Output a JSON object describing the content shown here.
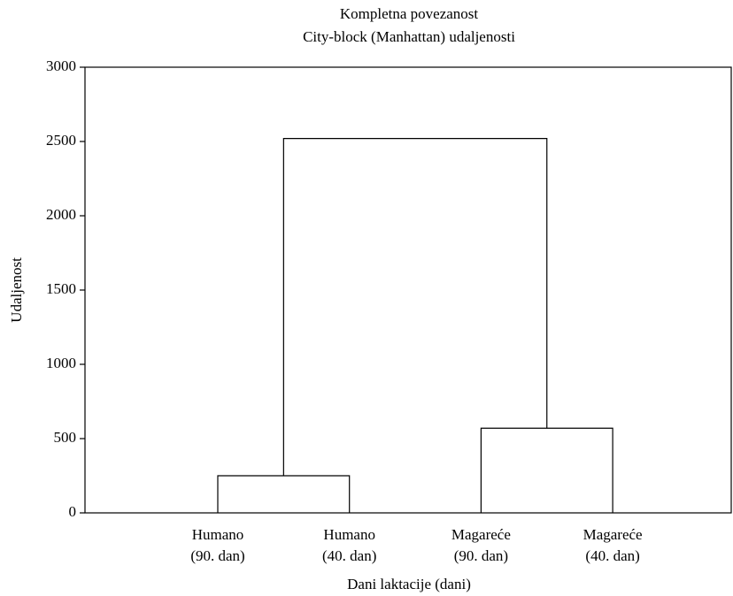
{
  "chart_data": {
    "type": "dendrogram",
    "title": "Kompletna povezanost",
    "subtitle": "City-block (Manhattan) udaljenosti",
    "y_label": "Udaljenost",
    "x_label": "Dani laktacije (dani)",
    "categories": [
      [
        "Humano",
        "(90. dan)"
      ],
      [
        "Humano",
        "(40. dan)"
      ],
      [
        "Magareće",
        "(90. dan)"
      ],
      [
        "Magareće",
        "(40. dan)"
      ]
    ],
    "tree": {
      "height": 2520,
      "children": [
        {
          "height": 250,
          "children": [
            0,
            1
          ]
        },
        {
          "height": 570,
          "children": [
            2,
            3
          ]
        }
      ]
    },
    "color": "#000000",
    "ylim": [
      0,
      3000
    ],
    "yticks": [
      0,
      500,
      1000,
      1500,
      2000,
      2500,
      3000
    ]
  }
}
